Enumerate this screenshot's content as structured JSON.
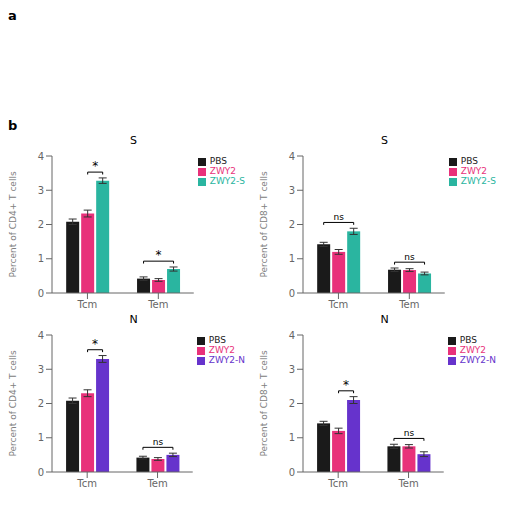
{
  "annotations": [
    "a",
    "b"
  ],
  "chart_data": [
    {
      "type": "bar",
      "title": "S",
      "ylabel": "Percent of CD4+ T cells",
      "categories": [
        "Tcm",
        "Tem"
      ],
      "series": [
        {
          "name": "PBS",
          "color": "#1a1a1a",
          "values": [
            2.08,
            0.42
          ],
          "errors": [
            0.08,
            0.05
          ]
        },
        {
          "name": "ZWY2",
          "color": "#e8317a",
          "values": [
            2.32,
            0.38
          ],
          "errors": [
            0.1,
            0.04
          ]
        },
        {
          "name": "ZWY2-S",
          "color": "#2ab5a0",
          "values": [
            3.28,
            0.7
          ],
          "errors": [
            0.08,
            0.06
          ]
        }
      ],
      "ylim": [
        0,
        4
      ],
      "yticks": [
        0,
        1,
        2,
        3,
        4
      ],
      "grid": false,
      "legend": "upper right",
      "annotations": [
        {
          "text": "*",
          "category": "Tcm",
          "between": [
            "ZWY2",
            "ZWY2-S"
          ]
        },
        {
          "text": "*",
          "category": "Tem",
          "between": [
            "PBS",
            "ZWY2-S"
          ]
        }
      ]
    },
    {
      "type": "bar",
      "title": "S",
      "ylabel": "Percent of CD8+ T cells",
      "categories": [
        "Tcm",
        "Tem"
      ],
      "series": [
        {
          "name": "PBS",
          "color": "#1a1a1a",
          "values": [
            1.42,
            0.68
          ],
          "errors": [
            0.06,
            0.05
          ]
        },
        {
          "name": "ZWY2",
          "color": "#e8317a",
          "values": [
            1.2,
            0.67
          ],
          "errors": [
            0.07,
            0.04
          ]
        },
        {
          "name": "ZWY2-S",
          "color": "#2ab5a0",
          "values": [
            1.8,
            0.57
          ],
          "errors": [
            0.09,
            0.04
          ]
        }
      ],
      "ylim": [
        0,
        4
      ],
      "yticks": [
        0,
        1,
        2,
        3,
        4
      ],
      "grid": false,
      "legend": "upper right",
      "annotations": [
        {
          "text": "ns",
          "category": "Tcm",
          "between": [
            "PBS",
            "ZWY2-S"
          ]
        },
        {
          "text": "ns",
          "category": "Tem",
          "between": [
            "PBS",
            "ZWY2-S"
          ]
        }
      ]
    },
    {
      "type": "bar",
      "title": "N",
      "ylabel": "Percent of CD4+ T cells",
      "categories": [
        "Tcm",
        "Tem"
      ],
      "series": [
        {
          "name": "PBS",
          "color": "#1a1a1a",
          "values": [
            2.08,
            0.42
          ],
          "errors": [
            0.08,
            0.04
          ]
        },
        {
          "name": "ZWY2",
          "color": "#e8317a",
          "values": [
            2.3,
            0.38
          ],
          "errors": [
            0.1,
            0.04
          ]
        },
        {
          "name": "ZWY2-N",
          "color": "#6633cc",
          "values": [
            3.3,
            0.5
          ],
          "errors": [
            0.1,
            0.05
          ]
        }
      ],
      "ylim": [
        0,
        4
      ],
      "yticks": [
        0,
        1,
        2,
        3,
        4
      ],
      "grid": false,
      "legend": "upper right",
      "annotations": [
        {
          "text": "*",
          "category": "Tcm",
          "between": [
            "ZWY2",
            "ZWY2-N"
          ]
        },
        {
          "text": "ns",
          "category": "Tem",
          "between": [
            "PBS",
            "ZWY2-N"
          ]
        }
      ]
    },
    {
      "type": "bar",
      "title": "N",
      "ylabel": "Percent of CD8+ T cells",
      "categories": [
        "Tcm",
        "Tem"
      ],
      "series": [
        {
          "name": "PBS",
          "color": "#1a1a1a",
          "values": [
            1.42,
            0.75
          ],
          "errors": [
            0.06,
            0.06
          ]
        },
        {
          "name": "ZWY2",
          "color": "#e8317a",
          "values": [
            1.2,
            0.75
          ],
          "errors": [
            0.08,
            0.05
          ]
        },
        {
          "name": "ZWY2-N",
          "color": "#6633cc",
          "values": [
            2.1,
            0.52
          ],
          "errors": [
            0.1,
            0.07
          ]
        }
      ],
      "ylim": [
        0,
        4
      ],
      "yticks": [
        0,
        1,
        2,
        3,
        4
      ],
      "grid": false,
      "legend": "upper right",
      "annotations": [
        {
          "text": "*",
          "category": "Tcm",
          "between": [
            "ZWY2",
            "ZWY2-N"
          ]
        },
        {
          "text": "ns",
          "category": "Tem",
          "between": [
            "PBS",
            "ZWY2-N"
          ]
        }
      ]
    }
  ]
}
